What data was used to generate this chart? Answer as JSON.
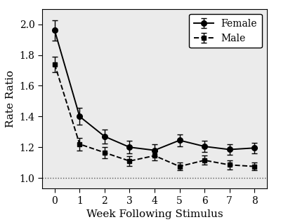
{
  "weeks": [
    0,
    1,
    2,
    3,
    4,
    5,
    6,
    7,
    8
  ],
  "female_y": [
    1.96,
    1.4,
    1.27,
    1.2,
    1.18,
    1.245,
    1.205,
    1.185,
    1.195
  ],
  "female_err": [
    0.065,
    0.055,
    0.045,
    0.04,
    0.038,
    0.04,
    0.038,
    0.035,
    0.035
  ],
  "male_y": [
    1.74,
    1.22,
    1.165,
    1.11,
    1.145,
    1.075,
    1.115,
    1.085,
    1.075
  ],
  "male_err": [
    0.05,
    0.04,
    0.035,
    0.03,
    0.03,
    0.025,
    0.03,
    0.028,
    0.025
  ],
  "xlabel": "Week Following Stimulus",
  "ylabel": "Rate Ratio",
  "ylim": [
    0.93,
    2.1
  ],
  "yticks": [
    1.0,
    1.2,
    1.4,
    1.6,
    1.8,
    2.0
  ],
  "xticks": [
    0,
    1,
    2,
    3,
    4,
    5,
    6,
    7,
    8
  ],
  "hline_y": 1.0,
  "female_label": "Female",
  "male_label": "Male",
  "line_color": "#000000",
  "bg_color": "#ffffff",
  "plot_bg_color": "#ebebeb",
  "font_size_axis_label": 11,
  "font_size_tick": 10,
  "font_size_legend": 10
}
